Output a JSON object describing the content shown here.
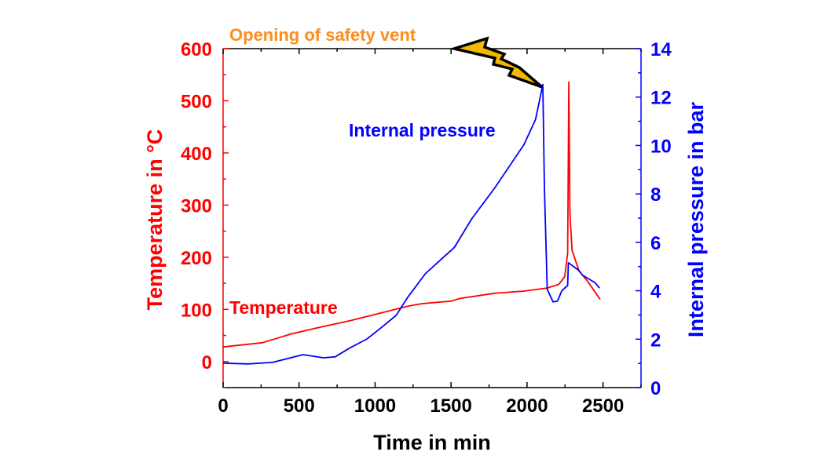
{
  "chart_data": {
    "type": "line",
    "xlabel": "Time in min",
    "ylabel_left": "Temperature in °C",
    "ylabel_right": "Internal pressure in bar",
    "xlim": [
      0,
      2750
    ],
    "ylim_left": [
      -50,
      600
    ],
    "ylim_right": [
      0,
      14
    ],
    "x_ticks": [
      0,
      500,
      1000,
      1500,
      2000,
      2500
    ],
    "y_left_ticks": [
      0,
      100,
      200,
      300,
      400,
      500,
      600
    ],
    "y_right_ticks": [
      0,
      2,
      4,
      6,
      8,
      10,
      12,
      14
    ],
    "grid": false,
    "colors": {
      "left_axis": "#ff0000",
      "right_axis": "#0000ff",
      "annotation": "#ff8c1a",
      "bolt": "#f5b800"
    },
    "annotation": "Opening of safety vent",
    "series": [
      {
        "name": "Temperature",
        "axis": "left",
        "color": "#ff0000",
        "x": [
          0,
          258,
          450,
          641,
          832,
          1023,
          1215,
          1310,
          1502,
          1559,
          1789,
          1980,
          2133,
          2209,
          2248,
          2267,
          2275,
          2282,
          2296,
          2343,
          2401,
          2481
        ],
        "y": [
          28,
          36,
          53,
          66,
          78,
          92,
          106,
          111,
          116,
          121,
          131,
          135,
          141,
          148,
          163,
          208,
          536,
          283,
          213,
          173,
          153,
          119
        ]
      },
      {
        "name": "Internal pressure",
        "axis": "right",
        "color": "#0000ff",
        "x": [
          0,
          163,
          325,
          526,
          660,
          737,
          832,
          947,
          1043,
          1138,
          1215,
          1330,
          1444,
          1521,
          1636,
          1789,
          1980,
          2056,
          2104,
          2114,
          2133,
          2171,
          2200,
          2229,
          2267,
          2272,
          2343,
          2363,
          2448,
          2477
        ],
        "y": [
          1.01,
          0.98,
          1.04,
          1.36,
          1.23,
          1.27,
          1.63,
          2.01,
          2.49,
          2.98,
          3.73,
          4.7,
          5.35,
          5.78,
          6.97,
          8.26,
          10.04,
          11.07,
          12.52,
          8.26,
          4.06,
          3.54,
          3.57,
          4.0,
          4.22,
          5.16,
          4.83,
          4.65,
          4.33,
          4.11
        ]
      }
    ]
  }
}
